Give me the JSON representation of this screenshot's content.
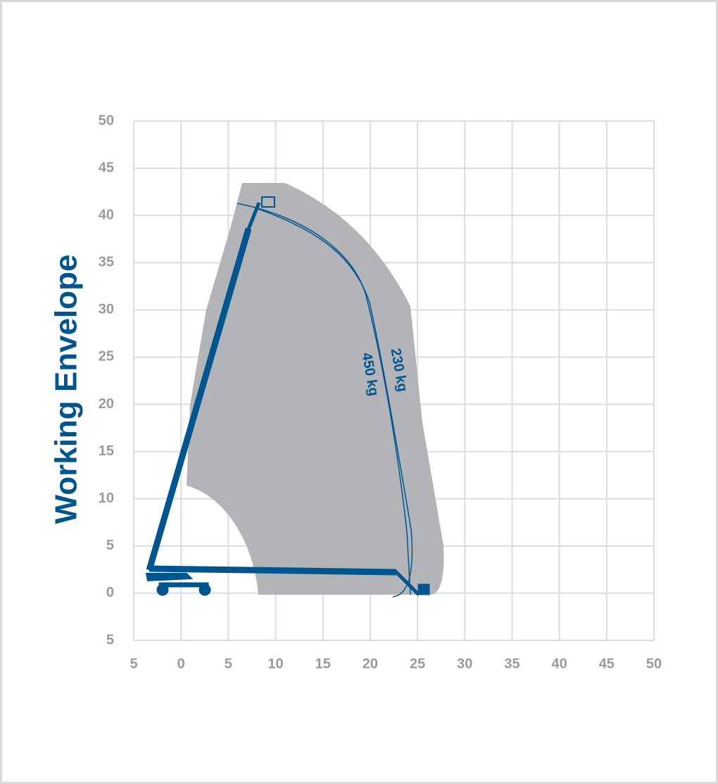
{
  "chart_data": {
    "type": "envelope",
    "title": "Working Envelope",
    "xlim": [
      -5,
      50
    ],
    "ylim": [
      -5,
      50
    ],
    "xticks": [
      {
        "value": -5,
        "label": "5"
      },
      0,
      5,
      10,
      15,
      20,
      25,
      30,
      35,
      40,
      45,
      50
    ],
    "yticks": [
      {
        "value": -5,
        "label": "5"
      },
      0,
      5,
      10,
      15,
      20,
      25,
      30,
      35,
      40,
      45,
      50
    ],
    "grid": true,
    "annotations": [
      "230 kg",
      "450 kg"
    ]
  }
}
